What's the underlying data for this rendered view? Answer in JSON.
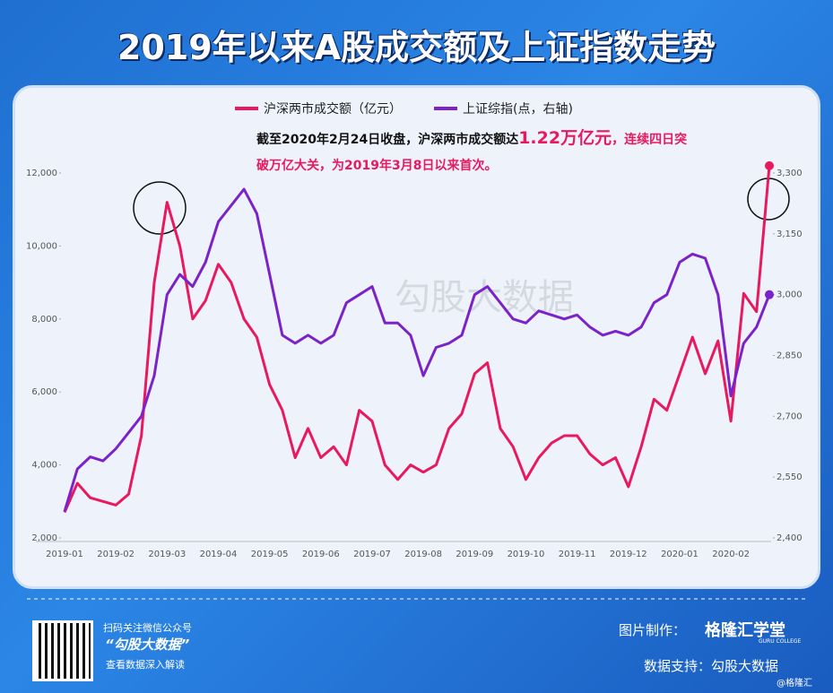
{
  "chart_data": {
    "type": "line",
    "title": "2019年以来A股成交额及上证指数走势",
    "watermark": "勾股大数据",
    "annotation": [
      "截至2020年2月24日收盘，沪深两市成交额达",
      "1.22万亿元",
      "，连续四日突",
      "破万亿大关，为2019年3月8日以来首次。"
    ],
    "categories": [
      "2019-01",
      null,
      null,
      null,
      "2019-02",
      null,
      null,
      null,
      "2019-03",
      null,
      null,
      null,
      "2019-04",
      null,
      null,
      null,
      "2019-05",
      null,
      null,
      null,
      "2019-06",
      null,
      null,
      null,
      "2019-07",
      null,
      null,
      null,
      "2019-08",
      null,
      null,
      null,
      "2019-09",
      null,
      null,
      null,
      "2019-10",
      null,
      null,
      null,
      "2019-11",
      null,
      null,
      null,
      "2019-12",
      null,
      null,
      null,
      "2020-01",
      null,
      null,
      null,
      "2020-02",
      null,
      null,
      null
    ],
    "series": [
      {
        "name": "沪深两市成交额（亿元）",
        "color": "#e8195f",
        "values": [
          2700,
          3500,
          3100,
          3000,
          2900,
          3200,
          4800,
          9000,
          11200,
          10000,
          8000,
          8500,
          9500,
          9000,
          8000,
          7500,
          6200,
          5500,
          4200,
          5000,
          4200,
          4500,
          4000,
          5500,
          5200,
          4000,
          3600,
          4000,
          3800,
          4000,
          5000,
          5400,
          6500,
          6800,
          5000,
          4500,
          3600,
          4200,
          4600,
          4800,
          4800,
          4300,
          4000,
          4200,
          3400,
          4500,
          5800,
          5500,
          6500,
          7500,
          6500,
          7400,
          5200,
          8700,
          8200,
          12200
        ]
      },
      {
        "name": "上证综指(点，右轴)",
        "color": "#7b22c9",
        "axis": "y2",
        "values": [
          2465,
          2570,
          2600,
          2590,
          2620,
          2660,
          2700,
          2800,
          3000,
          3050,
          3020,
          3080,
          3180,
          3220,
          3260,
          3200,
          3050,
          2900,
          2880,
          2900,
          2880,
          2900,
          2980,
          3000,
          3020,
          2930,
          2930,
          2900,
          2800,
          2870,
          2880,
          2900,
          3000,
          3020,
          2980,
          2940,
          2930,
          2960,
          2950,
          2940,
          2950,
          2920,
          2900,
          2910,
          2900,
          2920,
          2980,
          3000,
          3080,
          3100,
          3090,
          3000,
          2750,
          2880,
          2920,
          3000
        ]
      }
    ],
    "ylim": [
      2000,
      12000
    ],
    "yticks": [
      {
        "value": 2000,
        "label": "2,000"
      },
      {
        "value": 4000,
        "label": "4,000"
      },
      {
        "value": 6000,
        "label": "6,000"
      },
      {
        "value": 8000,
        "label": "8,000"
      },
      {
        "value": 10000,
        "label": "10,000"
      },
      {
        "value": 12000,
        "label": "12,000"
      }
    ],
    "y2lim": [
      2400,
      3300
    ],
    "y2ticks": [
      {
        "value": 2400,
        "label": "2,400"
      },
      {
        "value": 2550,
        "label": "2,550"
      },
      {
        "value": 2700,
        "label": "2,700"
      },
      {
        "value": 2850,
        "label": "2,850"
      },
      {
        "value": 3000,
        "label": "3,000"
      },
      {
        "value": 3150,
        "label": "3,150"
      },
      {
        "value": 3300,
        "label": "3,300"
      }
    ],
    "legend": "top"
  },
  "footer": {
    "scan": "扫码关注微信公众号",
    "account": "“勾股大数据”",
    "read": "查看数据深入解读",
    "made_by": "图片制作：",
    "brand": "格隆汇学堂",
    "brand_sub": "GURU COLLEGE",
    "source": "数据支持：勾股大数据",
    "credit": "@格隆汇"
  }
}
